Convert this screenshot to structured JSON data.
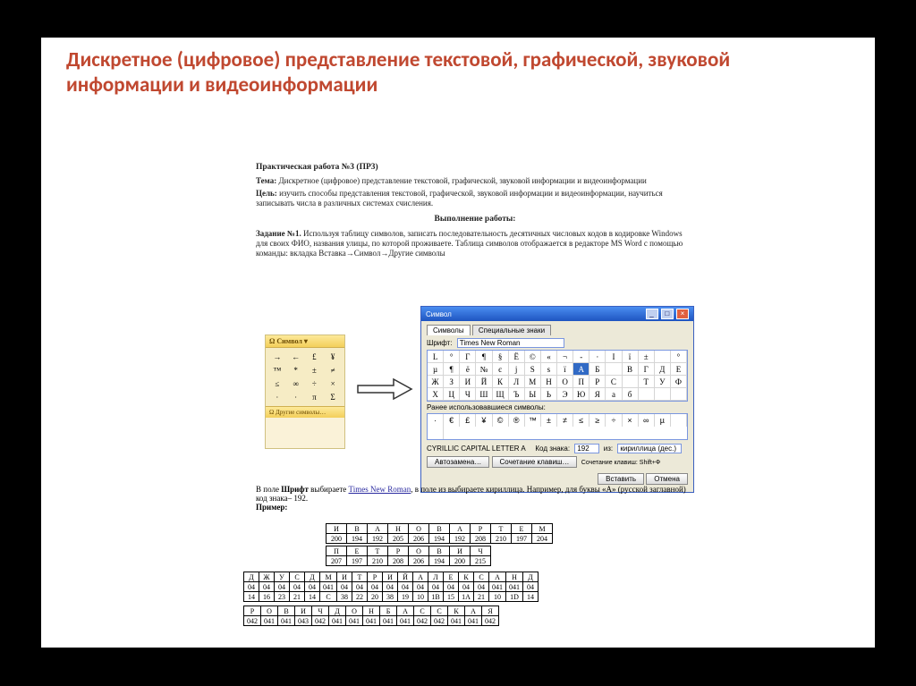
{
  "title": "Дискретное (цифровое) представление текстовой, графической, звуковой информации и видеоинформации",
  "doc": {
    "work_title": "Практическая работа №3 (ПР3)",
    "tema_label": "Тема:",
    "tema": "Дискретное (цифровое) представление текстовой, графической, звуковой информации и видеоинформации",
    "cel_label": "Цель:",
    "cel": "изучить способы представления текстовой, графической, звуковой информации и видеоинформации, научиться записывать числа в различных системах счисления.",
    "perform": "Выполнение работы:",
    "task_label": "Задание №1.",
    "task_text": "Используя таблицу символов, записать последовательность десятичных числовых кодов в кодировке Windows для своих ФИО, названия улицы, по которой проживаете. Таблица символов отображается в редакторе MS Word с помощью команды: вкладка Вставка→Символ→Другие символы"
  },
  "mini": {
    "header": "Ω Символ ▾",
    "cells": [
      "→",
      "←",
      "£",
      "¥",
      "™",
      "*",
      "±",
      "≠",
      "≤",
      "∞",
      "÷",
      "×",
      "∙",
      "∙",
      "π",
      "Σ"
    ],
    "footer": "Ω Другие символы…"
  },
  "symwin": {
    "title": "Символ",
    "tab1": "Символы",
    "tab2": "Специальные знаки",
    "font_label": "Шрифт:",
    "font": "Times New Roman",
    "grid": [
      "L",
      "°",
      "Г",
      "¶",
      "§",
      "Ё",
      "©",
      "«",
      "¬",
      "-",
      "·",
      "I",
      "ï",
      "±",
      "",
      "°",
      "µ",
      "¶",
      "ё",
      "№",
      "є",
      "j",
      "S",
      "s",
      "ї",
      "А",
      "Б",
      "",
      "В",
      "Г",
      "Д",
      "Е",
      "Ж",
      "З",
      "И",
      "Й",
      "К",
      "Л",
      "М",
      "Н",
      "О",
      "П",
      "Р",
      "С",
      "",
      "Т",
      "У",
      "Ф",
      "Х",
      "Ц",
      "Ч",
      "Ш",
      "Щ",
      "Ъ",
      "Ы",
      "Ь",
      "Э",
      "Ю",
      "Я",
      "а",
      "б",
      ""
    ],
    "recent_label": "Ранее использовавшиеся символы:",
    "recent": [
      "·",
      "€",
      "£",
      "¥",
      "©",
      "®",
      "™",
      "±",
      "≠",
      "≤",
      "≥",
      "÷",
      "×",
      "∞",
      "µ",
      "",
      ""
    ],
    "name_label": "CYRILLIC CAPITAL LETTER A",
    "code_label": "Код знака:",
    "code": "192",
    "from_label": "из:",
    "from": "кириллица (дес.)",
    "auto": "Автозамена…",
    "shortcut": "Сочетание клавиш…",
    "shortcut2": "Сочетание клавиш: Shift+Ф",
    "insert": "Вставить",
    "cancel": "Отмена"
  },
  "low": {
    "p1a": "В поле ",
    "p1b": "Шрифт",
    "p1c": " выбираете ",
    "p1d": "Times New Roman",
    "p1e": ", в поле из выбираете кириллица. Например, для буквы «А» (русской заглавной) код знака– 192.",
    "example": "Пример:"
  },
  "tables": {
    "t1h": [
      "И",
      "В",
      "А",
      "Н",
      "О",
      "В",
      "А",
      "Р",
      "Т",
      "Е",
      "М"
    ],
    "t1v": [
      "200",
      "194",
      "192",
      "205",
      "206",
      "194",
      "192",
      "208",
      "210",
      "197",
      "204"
    ],
    "t2h": [
      "П",
      "Е",
      "Т",
      "Р",
      "О",
      "В",
      "И",
      "Ч"
    ],
    "t2v": [
      "207",
      "197",
      "210",
      "208",
      "206",
      "194",
      "200",
      "215"
    ],
    "t3h": [
      "Д",
      "Ж",
      "У",
      "С",
      "Д",
      "М",
      "И",
      "Т",
      "Р",
      "И",
      "Й",
      "А",
      "Л",
      "Е",
      "К",
      "С",
      "А",
      "Н",
      "Д"
    ],
    "t3v": [
      "04",
      "04",
      "04",
      "04",
      "04",
      "041",
      "04",
      "04",
      "04",
      "04",
      "04",
      "04",
      "04",
      "04",
      "04",
      "04",
      "041",
      "041",
      "04"
    ],
    "t3w": [
      "14",
      "16",
      "23",
      "21",
      "14",
      "C",
      "38",
      "22",
      "20",
      "38",
      "19",
      "10",
      "1B",
      "15",
      "1A",
      "21",
      "10",
      "1D",
      "14"
    ],
    "t4h": [
      "Р",
      "О",
      "В",
      "И",
      "Ч",
      "Д",
      "О",
      "Н",
      "Б",
      "А",
      "С",
      "С",
      "К",
      "А",
      "Я"
    ],
    "t4v": [
      "042",
      "041",
      "041",
      "043",
      "042",
      "041",
      "041",
      "041",
      "041",
      "041",
      "042",
      "042",
      "041",
      "041",
      "042"
    ]
  }
}
